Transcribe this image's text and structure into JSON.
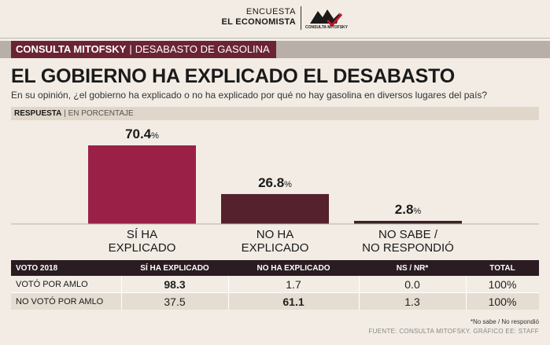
{
  "brand": {
    "line1": "ENCUESTA",
    "line2": "EL ECONOMISTA",
    "logo_text": "CONSULTA MITOFSKY"
  },
  "section": {
    "source": "CONSULTA MITOFSKY",
    "separator": "|",
    "topic": "DESABASTO DE GASOLINA"
  },
  "title": "EL GOBIERNO HA EXPLICADO EL DESABASTO",
  "subtitle": "En su opinión, ¿el gobierno ha explicado o no ha explicado por qué no hay gasolina en diversos lugares del país?",
  "response_label": {
    "bold": "RESPUESTA",
    "separator": "|",
    "rest": "EN PORCENTAJE"
  },
  "chart_data": {
    "type": "bar",
    "categories": [
      [
        "SÍ HA",
        "EXPLICADO"
      ],
      [
        "NO HA",
        "EXPLICADO"
      ],
      [
        "NO SABE /",
        "NO RESPONDIÓ"
      ]
    ],
    "values": [
      70.4,
      26.8,
      2.8
    ],
    "unit": "%",
    "colors": [
      "#9b2048",
      "#55212c",
      "#3a2326"
    ],
    "ylim": [
      0,
      70.4
    ]
  },
  "table": {
    "headers": [
      "VOTO 2018",
      "SÍ HA EXPLICADO",
      "NO HA EXPLICADO",
      "NS / NR*",
      "TOTAL"
    ],
    "rows": [
      {
        "label": "VOTÓ POR AMLO",
        "values": [
          "98.3",
          "1.7",
          "0.0",
          "100%"
        ],
        "bold_index": 0
      },
      {
        "label": "NO VOTÓ POR AMLO",
        "values": [
          "37.5",
          "61.1",
          "1.3",
          "100%"
        ],
        "bold_index": 1
      }
    ]
  },
  "note": "*No sabe / No respondió",
  "source": "FUENTE: CONSULTA MITOFSKY. GRÁFICO EE: STAFF",
  "colors": {
    "accent": "#6b2434",
    "background": "#f2ece4",
    "bar_bg": "#b8b0a8"
  }
}
